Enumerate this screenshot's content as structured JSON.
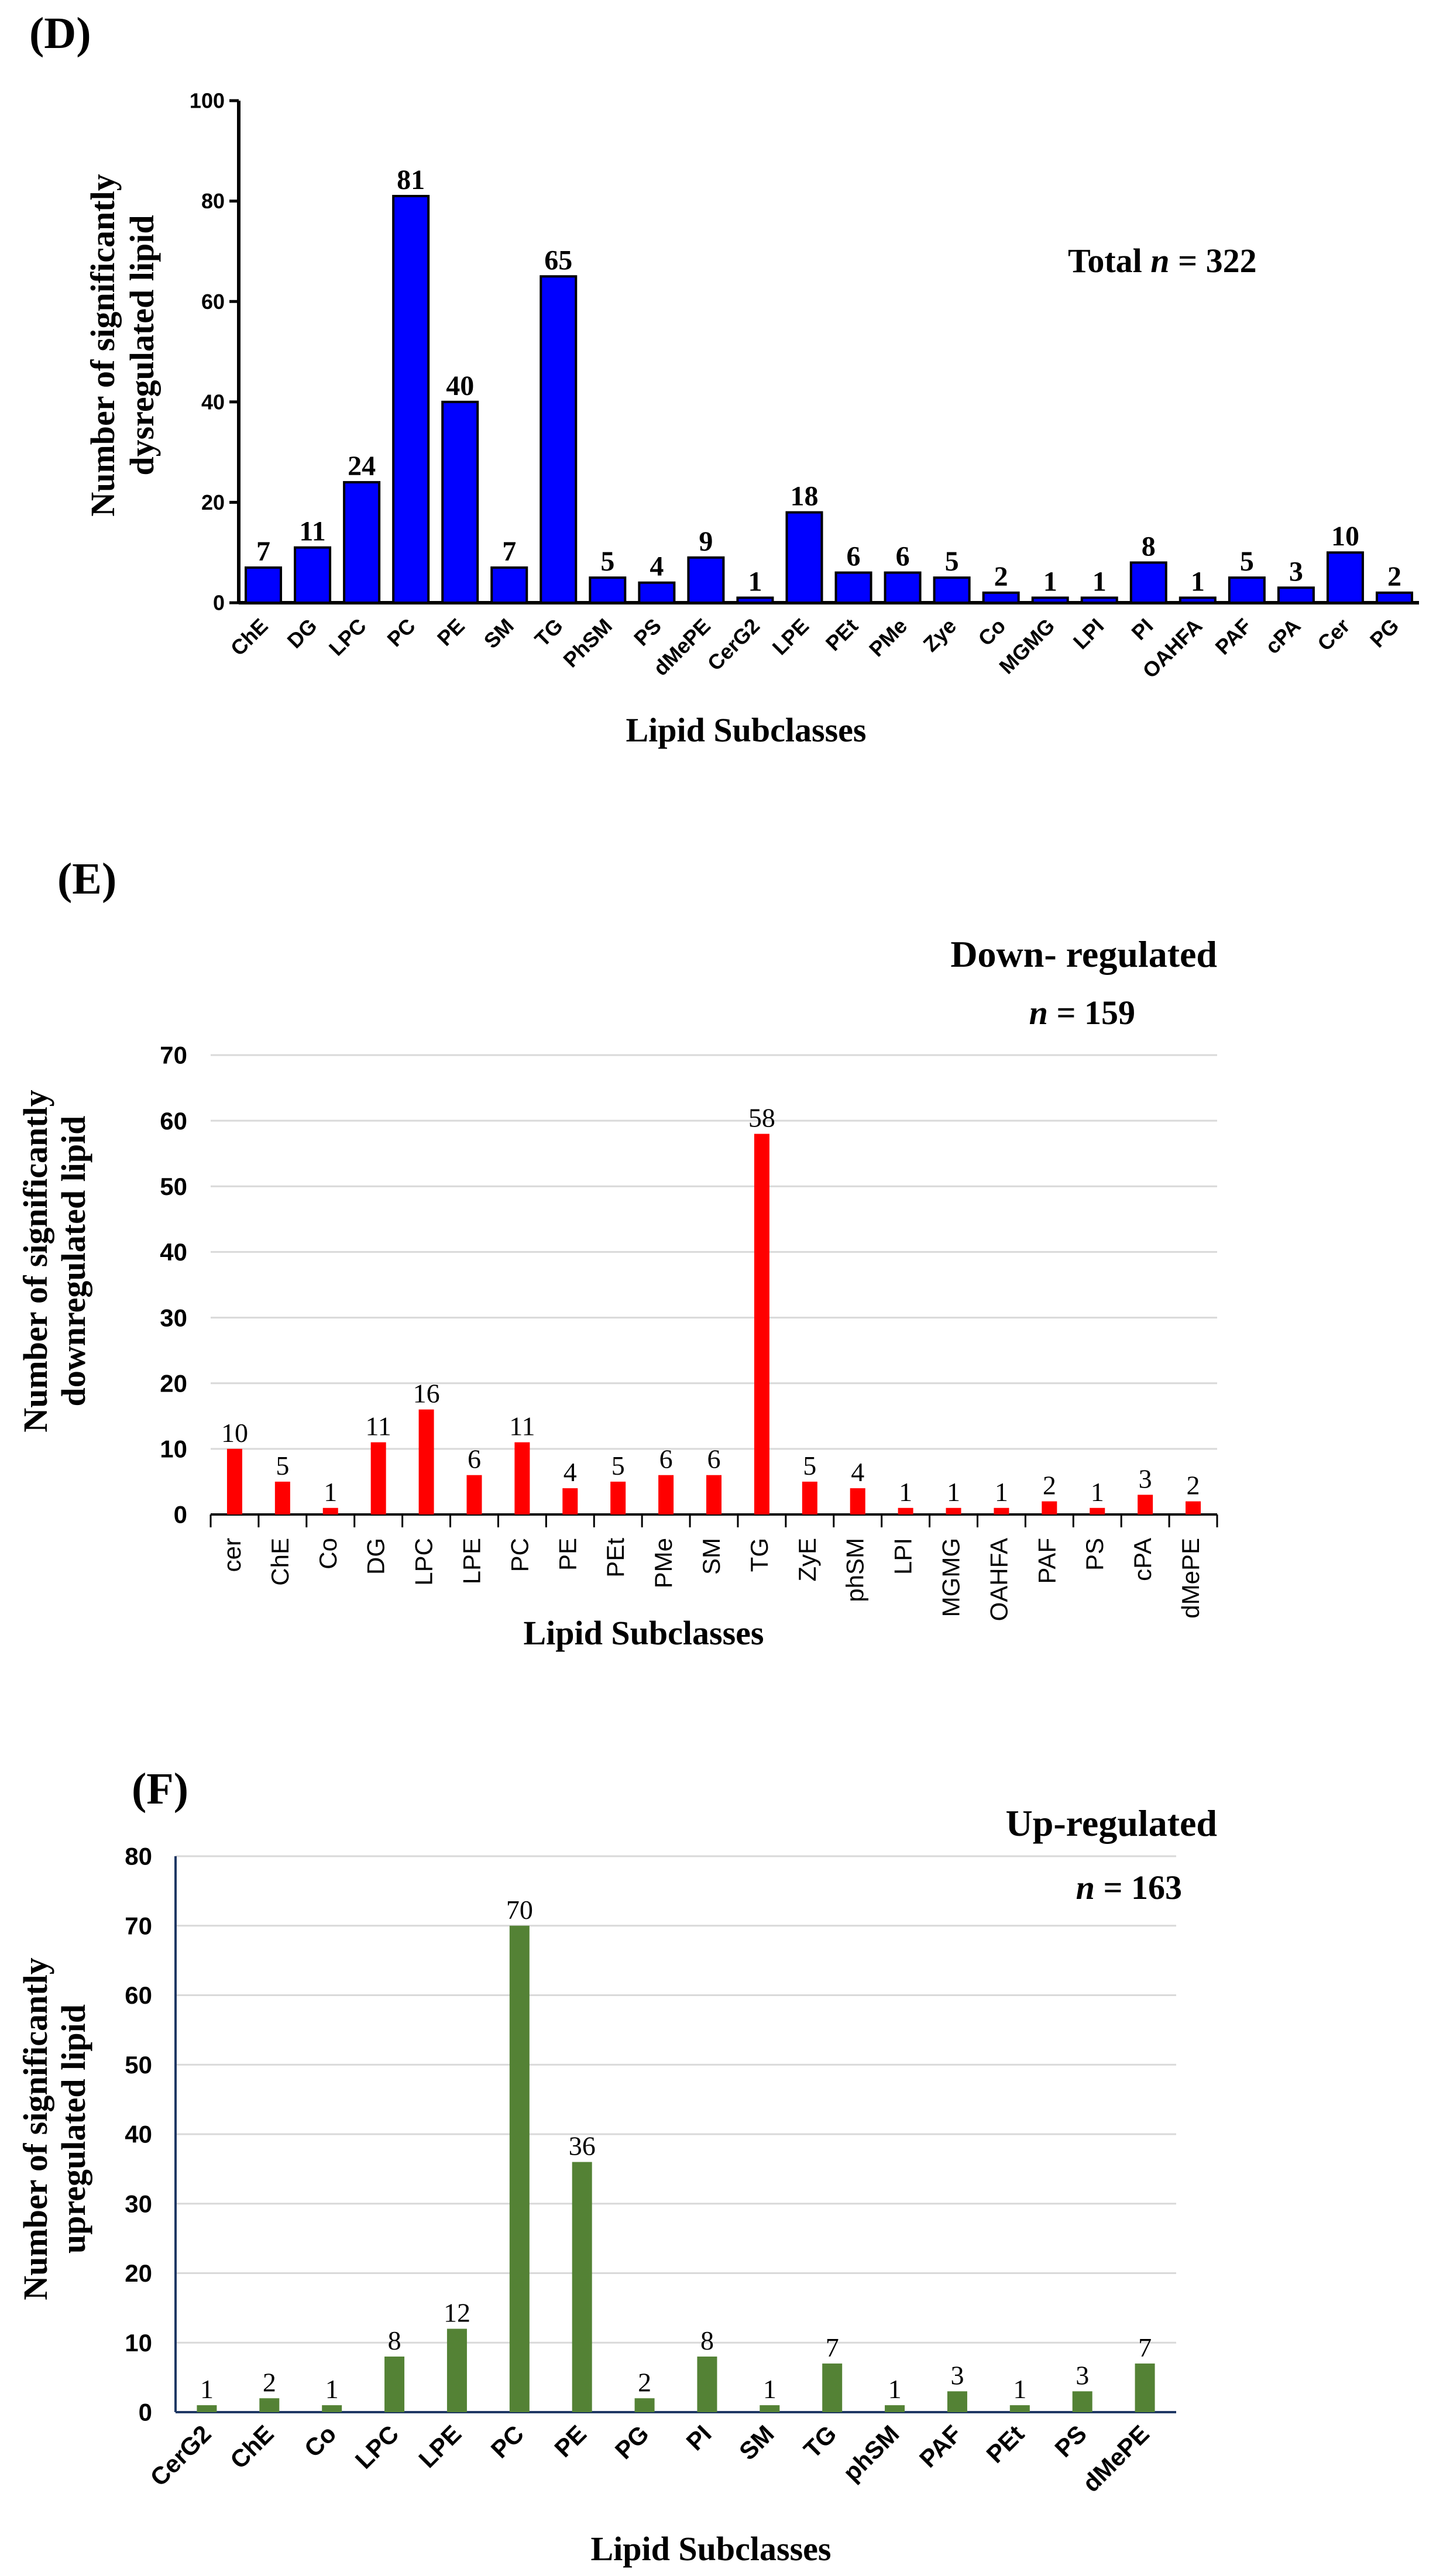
{
  "panels": [
    {
      "id": "D",
      "panel_label": "(D)",
      "annotation_prefix": "Total ",
      "annotation_n": "n",
      "annotation_value": " = 322",
      "xlabel": "Lipid Subclasses",
      "ylabel_line1": "Number of significantly",
      "ylabel_line2": "dysregulated lipid",
      "color": "#0000FF",
      "ylim": [
        0,
        100
      ],
      "yticks": [
        "0",
        "20",
        "40",
        "60",
        "80",
        "100"
      ]
    },
    {
      "id": "E",
      "panel_label": "(E)",
      "title": "Down- regulated",
      "n_italic": "n",
      "n_value": " = 159",
      "xlabel": "Lipid Subclasses",
      "ylabel_line1": "Number of significantly",
      "ylabel_line2": "downregulated lipid",
      "color": "#FF0000",
      "ylim": [
        0,
        70
      ],
      "yticks": [
        "0",
        "10",
        "20",
        "30",
        "40",
        "50",
        "60",
        "70"
      ]
    },
    {
      "id": "F",
      "panel_label": "(F)",
      "title": "Up-regulated",
      "n_italic": "n",
      "n_value": " = 163",
      "xlabel": "Lipid Subclasses",
      "ylabel_line1": "Number of significantly",
      "ylabel_line2": "upregulated lipid",
      "color": "#548235",
      "ylim": [
        0,
        80
      ],
      "yticks": [
        "0",
        "10",
        "20",
        "30",
        "40",
        "50",
        "60",
        "70",
        "80"
      ]
    }
  ],
  "chart_data": [
    {
      "type": "bar",
      "title": "Total n = 322",
      "xlabel": "Lipid Subclasses",
      "ylabel": "Number of significantly dysregulated lipid",
      "ylim": [
        0,
        100
      ],
      "categories": [
        "ChE",
        "DG",
        "LPC",
        "PC",
        "PE",
        "SM",
        "TG",
        "PhSM",
        "PS",
        "dMePE",
        "CerG2",
        "LPE",
        "PEt",
        "PMe",
        "Zye",
        "Co",
        "MGMG",
        "LPI",
        "PI",
        "OAHFA",
        "PAF",
        "cPA",
        "Cer",
        "PG"
      ],
      "values": [
        7,
        11,
        24,
        81,
        40,
        7,
        65,
        5,
        4,
        9,
        1,
        18,
        6,
        6,
        5,
        2,
        1,
        1,
        8,
        1,
        5,
        3,
        10,
        2
      ]
    },
    {
      "type": "bar",
      "title": "Down- regulated n = 159",
      "xlabel": "Lipid Subclasses",
      "ylabel": "Number of significantly downregulated lipid",
      "ylim": [
        0,
        70
      ],
      "categories": [
        "cer",
        "ChE",
        "Co",
        "DG",
        "LPC",
        "LPE",
        "PC",
        "PE",
        "PEt",
        "PMe",
        "SM",
        "TG",
        "ZyE",
        "phSM",
        "LPI",
        "MGMG",
        "OAHFA",
        "PAF",
        "PS",
        "cPA",
        "dMePE"
      ],
      "values": [
        10,
        5,
        1,
        11,
        16,
        6,
        11,
        4,
        5,
        6,
        6,
        58,
        5,
        4,
        1,
        1,
        1,
        2,
        1,
        3,
        2
      ]
    },
    {
      "type": "bar",
      "title": "Up-regulated n = 163",
      "xlabel": "Lipid Subclasses",
      "ylabel": "Number of significantly upregulated lipid",
      "ylim": [
        0,
        80
      ],
      "categories": [
        "CerG2",
        "ChE",
        "Co",
        "LPC",
        "LPE",
        "PC",
        "PE",
        "PG",
        "PI",
        "SM",
        "TG",
        "phSM",
        "PAF",
        "PEt",
        "PS",
        "dMePE"
      ],
      "values": [
        1,
        2,
        1,
        8,
        12,
        70,
        36,
        2,
        8,
        1,
        7,
        1,
        3,
        1,
        3,
        7
      ]
    }
  ]
}
